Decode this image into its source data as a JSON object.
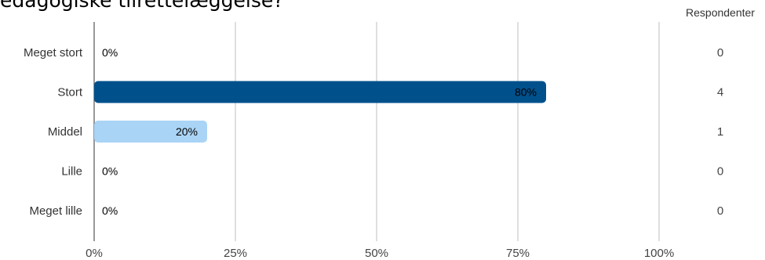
{
  "chart_data": {
    "type": "bar",
    "orientation": "horizontal",
    "title": "edagogiske tilrettelæggelse?",
    "categories": [
      "Meget stort",
      "Stort",
      "Middel",
      "Lille",
      "Meget lille"
    ],
    "values": [
      0,
      80,
      20,
      0,
      0
    ],
    "value_labels": [
      "0%",
      "80%",
      "20%",
      "0%",
      "0%"
    ],
    "respondents_header": "Respondenter",
    "respondents": [
      "0",
      "4",
      "1",
      "0",
      "0"
    ],
    "xlim": [
      0,
      100
    ],
    "x_ticks": [
      0,
      25,
      50,
      75,
      100
    ],
    "x_tick_labels": [
      "0%",
      "25%",
      "50%",
      "75%",
      "100%"
    ],
    "grid": true,
    "colors": {
      "bars": [
        "#1f4e79",
        "#00508c",
        "#aad4f5",
        "#aad4f5",
        "#aad4f5"
      ],
      "grid": "#bfbfbf",
      "axis": "#555555"
    }
  }
}
